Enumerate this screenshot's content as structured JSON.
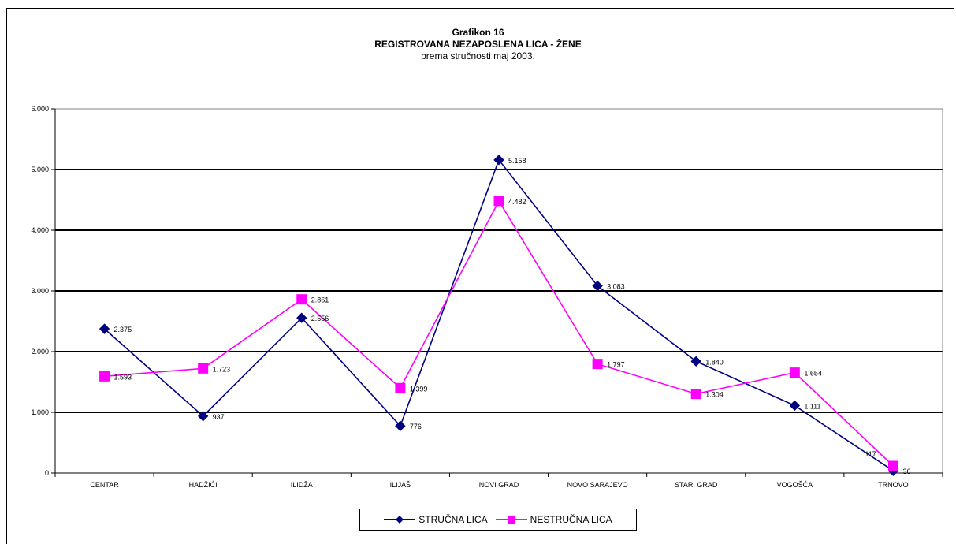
{
  "chart_data": {
    "type": "line",
    "title": "Grafikon 16",
    "subtitle": "REGISTROVANA NEZAPOSLENA LICA - ŽENE",
    "subtitle2": "prema stručnosti maj 2003.",
    "xlabel": "",
    "ylabel": "",
    "ylim": [
      0,
      6000
    ],
    "yticks": [
      0,
      1000,
      2000,
      3000,
      4000,
      5000,
      6000
    ],
    "ytick_labels": [
      "0",
      "1.000",
      "2.000",
      "3.000",
      "4.000",
      "5.000",
      "6.000"
    ],
    "grid": true,
    "legend_position": "bottom",
    "categories": [
      "CENTAR",
      "HADŽIĆI",
      "ILIDŽA",
      "ILIJAŠ",
      "NOVI GRAD",
      "NOVO SARAJEVO",
      "STARI GRAD",
      "VOGOŠĆA",
      "TRNOVO"
    ],
    "series": [
      {
        "name": "STRUČNA LICA",
        "color": "#000080",
        "marker": "diamond",
        "values": [
          2375,
          937,
          2556,
          776,
          5158,
          3083,
          1840,
          1111,
          36
        ],
        "labels": [
          "2.375",
          "937",
          "2.556",
          "776",
          "5.158",
          "3.083",
          "1.840",
          "1.111",
          "36"
        ]
      },
      {
        "name": "NESTRUČNA LICA",
        "color": "#ff00ff",
        "marker": "square",
        "values": [
          1593,
          1723,
          2861,
          1399,
          4482,
          1797,
          1304,
          1654,
          117
        ],
        "labels": [
          "1.593",
          "1.723",
          "2.861",
          "1.399",
          "4.482",
          "1.797",
          "1.304",
          "1.654",
          "117"
        ]
      }
    ]
  }
}
